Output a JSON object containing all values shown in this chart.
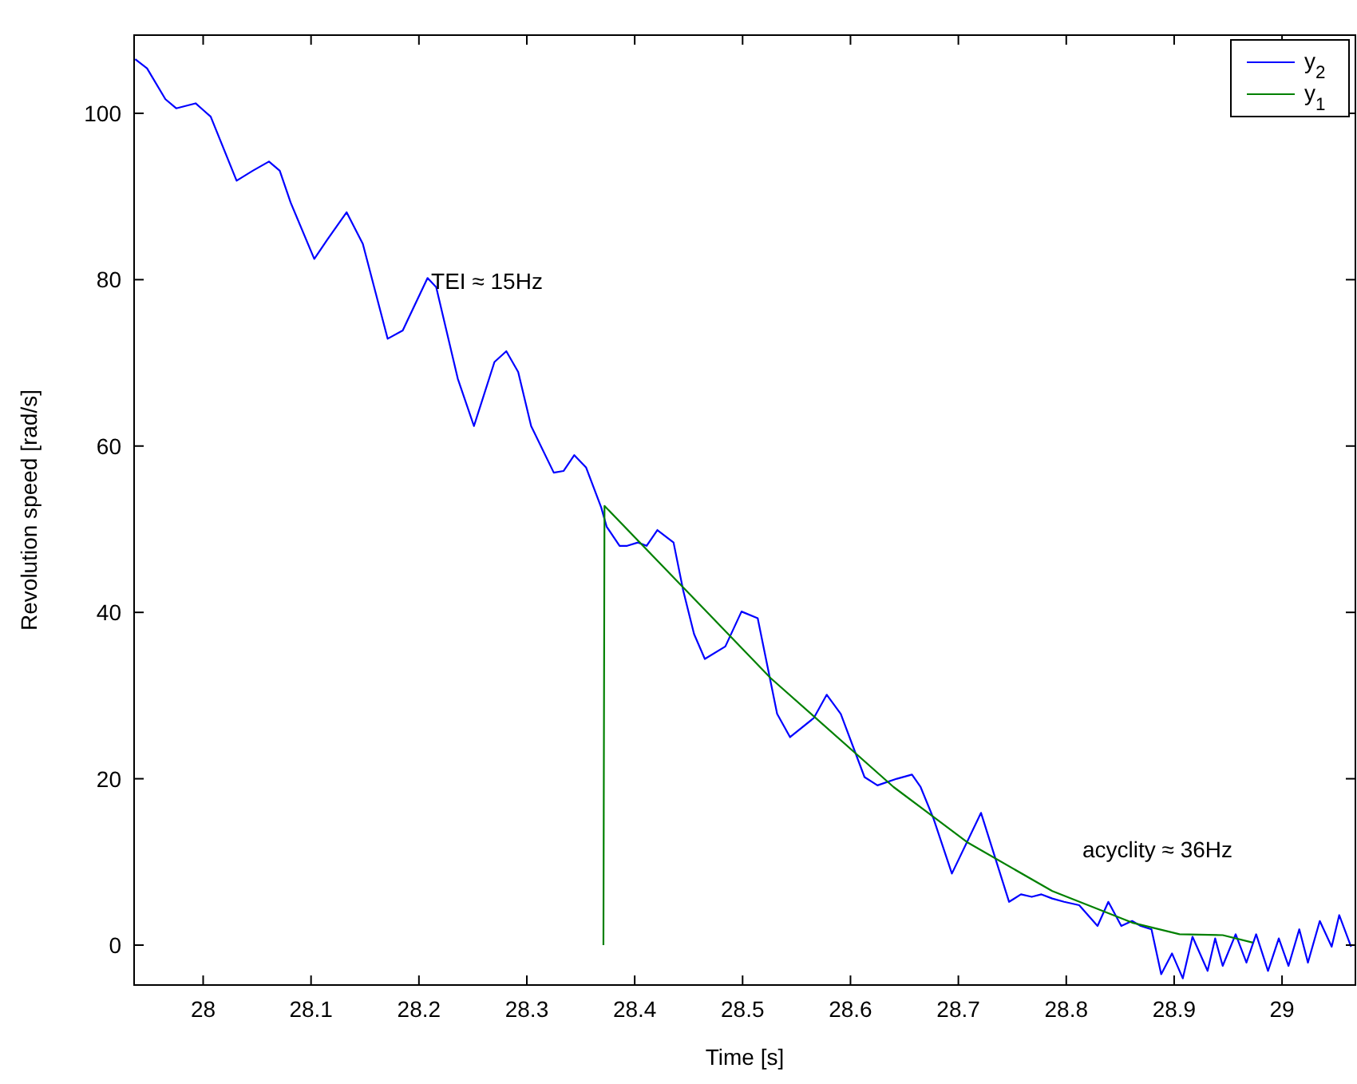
{
  "chart_data": {
    "type": "line",
    "xlabel": "Time [s]",
    "ylabel": "Revolution speed [rad/s]",
    "xlim": [
      27.936,
      29.068
    ],
    "ylim": [
      -4.8,
      109.4
    ],
    "xticks": [
      28,
      28.1,
      28.2,
      28.3,
      28.4,
      28.5,
      28.6,
      28.7,
      28.8,
      28.9,
      29
    ],
    "yticks": [
      0,
      20,
      40,
      60,
      80,
      100
    ],
    "grid": false,
    "legend": "top right",
    "line_style": "solid",
    "marker": "none",
    "annotations": [
      "TEI ≈ 15Hz",
      "acyclity ≈ 36Hz"
    ],
    "series": [
      {
        "name": "y$_{2}$",
        "color": "#0000ff",
        "x": [
          27.937,
          27.948,
          27.965,
          27.975,
          27.993,
          28.007,
          28.031,
          28.046,
          28.061,
          28.071,
          28.081,
          28.103,
          28.115,
          28.133,
          28.148,
          28.171,
          28.185,
          28.208,
          28.216,
          28.236,
          28.251,
          28.27,
          28.281,
          28.292,
          28.304,
          28.325,
          28.334,
          28.344,
          28.355,
          28.369,
          28.374,
          28.386,
          28.393,
          28.403,
          28.411,
          28.421,
          28.436,
          28.445,
          28.455,
          28.465,
          28.484,
          28.499,
          28.514,
          28.532,
          28.544,
          28.566,
          28.578,
          28.591,
          28.613,
          28.625,
          28.643,
          28.657,
          28.665,
          28.677,
          28.694,
          28.721,
          28.747,
          28.758,
          28.768,
          28.777,
          28.787,
          28.798,
          28.812,
          28.829,
          28.839,
          28.851,
          28.861,
          28.869,
          28.879,
          28.888,
          28.898,
          28.908,
          28.917,
          28.931,
          28.938,
          28.945,
          28.957,
          28.967,
          28.976,
          28.987,
          28.997,
          29.006,
          29.016,
          29.024,
          29.035,
          29.046,
          29.053,
          29.064
        ],
        "values": [
          106.5,
          105.4,
          101.7,
          100.6,
          101.2,
          99.6,
          91.9,
          93.1,
          94.2,
          93.1,
          89.3,
          82.5,
          84.8,
          88.1,
          84.3,
          72.9,
          73.9,
          80.2,
          79.1,
          68.1,
          62.4,
          70.1,
          71.4,
          68.9,
          62.4,
          56.8,
          57.0,
          58.9,
          57.4,
          52.6,
          50.3,
          48.0,
          48.0,
          48.4,
          48.0,
          49.9,
          48.4,
          42.6,
          37.4,
          34.4,
          35.9,
          40.1,
          39.3,
          27.8,
          25.0,
          27.3,
          30.1,
          27.8,
          20.2,
          19.2,
          20.0,
          20.5,
          19.0,
          15.2,
          8.6,
          15.9,
          5.2,
          6.1,
          5.8,
          6.1,
          5.6,
          5.2,
          4.8,
          2.3,
          5.2,
          2.3,
          2.9,
          2.3,
          1.9,
          -3.5,
          -1.0,
          -4.0,
          1.0,
          -3.1,
          0.8,
          -2.5,
          1.3,
          -2.1,
          1.3,
          -3.1,
          0.8,
          -2.5,
          1.9,
          -2.1,
          2.9,
          -0.2,
          3.6,
          -0.2
        ]
      },
      {
        "name": "y$_{1}$",
        "color": "#008000",
        "x": [
          28.371,
          28.372,
          28.445,
          28.526,
          28.64,
          28.709,
          28.787,
          28.861,
          28.905,
          28.945,
          28.973
        ],
        "values": [
          0,
          52.8,
          43.0,
          32.1,
          19.0,
          12.3,
          6.5,
          2.7,
          1.3,
          1.2,
          0.3
        ]
      }
    ]
  }
}
